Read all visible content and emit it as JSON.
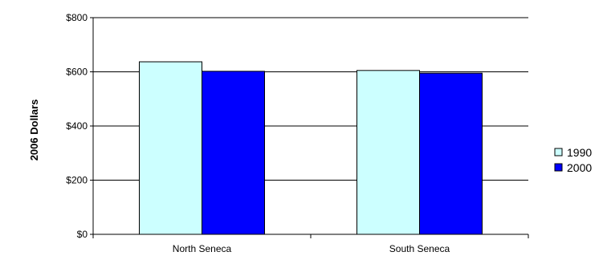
{
  "chart_data": {
    "type": "bar",
    "title": "",
    "xlabel": "",
    "ylabel": "2006 Dollars",
    "categories": [
      "North Seneca",
      "South Seneca"
    ],
    "series": [
      {
        "name": "1990",
        "values": [
          637,
          605
        ],
        "color": "#CCFFFF"
      },
      {
        "name": "2000",
        "values": [
          602,
          595
        ],
        "color": "#0000FF"
      }
    ],
    "ylim": [
      0,
      800
    ],
    "yticks": [
      0,
      200,
      400,
      600,
      800
    ],
    "ytick_labels": [
      "$0",
      "$200",
      "$400",
      "$600",
      "$800"
    ],
    "grid": true,
    "legend_position": "right"
  }
}
